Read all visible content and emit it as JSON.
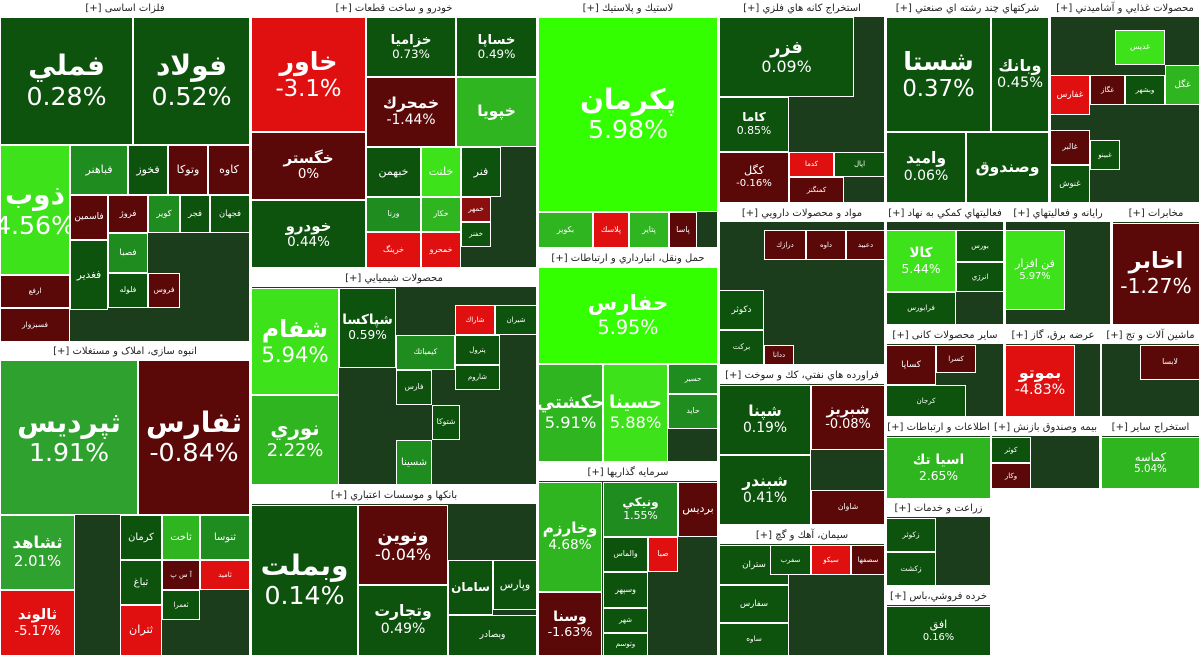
{
  "sectors": [
    {
      "title": "فلزات اساسی [+]",
      "tiles": [
        {
          "label": "فملي",
          "change": "0.28%",
          "color": "#0d520d"
        },
        {
          "label": "فولاد",
          "change": "0.52%",
          "color": "#0d520d"
        },
        {
          "label": "ذوب",
          "change": "4.56%",
          "color": "#3ee21b"
        },
        {
          "label": "فباهنر",
          "color": "#1f8c1f"
        },
        {
          "label": "فخوز",
          "color": "#0d520d"
        },
        {
          "label": "وتوكا",
          "color": "#5a0808"
        },
        {
          "label": "كاوه",
          "color": "#5a0808"
        },
        {
          "label": "فاسمين",
          "color": "#5a0808"
        },
        {
          "label": "فروژ",
          "color": "#5a0808"
        },
        {
          "label": "كوير",
          "color": "#1f8c1f"
        },
        {
          "label": "فجر",
          "color": "#0d520d"
        },
        {
          "label": "فجهان",
          "color": "#0d520d"
        },
        {
          "label": "فغدير",
          "color": "#0d520d"
        },
        {
          "label": "ارفع",
          "color": "#5a0808"
        },
        {
          "label": "فسبزوار",
          "color": "#5a0808"
        },
        {
          "label": "فصبا",
          "color": "#1f8c1f"
        },
        {
          "label": "فلوله",
          "color": "#0d520d"
        },
        {
          "label": "فروس",
          "color": "#5a0808"
        }
      ]
    },
    {
      "title": "انبوه سازی، املاک و مستغلات [+]",
      "tiles": [
        {
          "label": "ثپرديس",
          "change": "1.91%",
          "color": "#2ea12e"
        },
        {
          "label": "ثفارس",
          "change": "-0.84%",
          "color": "#5a0808"
        },
        {
          "label": "ثشاهد",
          "change": "2.01%",
          "color": "#2ea12e"
        },
        {
          "label": "كرمان",
          "color": "#0d520d"
        },
        {
          "label": "ثاخت",
          "color": "#2fb51f"
        },
        {
          "label": "ثنوسا",
          "color": "#1f8c1f"
        },
        {
          "label": "آ س پ",
          "color": "#5a0808"
        },
        {
          "label": "ثاميد",
          "color": "#e01010"
        },
        {
          "label": "ثباغ",
          "color": "#0d520d"
        },
        {
          "label": "ثالوند",
          "change": "-5.17%",
          "color": "#e01010"
        },
        {
          "label": "ثتران",
          "color": "#e01010"
        },
        {
          "label": "ثعمرا",
          "color": "#0d520d"
        }
      ]
    },
    {
      "title": "خودرو و ساخت قطعات [+]",
      "tiles": [
        {
          "label": "خاور",
          "change": "-3.1%",
          "color": "#e01010"
        },
        {
          "label": "خگستر",
          "change": "0%",
          "color": "#5a0808"
        },
        {
          "label": "خودرو",
          "change": "0.44%",
          "color": "#0d520d"
        },
        {
          "label": "خزاميا",
          "change": "0.73%",
          "color": "#0d520d"
        },
        {
          "label": "خساپا",
          "change": "0.49%",
          "color": "#0d520d"
        },
        {
          "label": "خمحرك",
          "change": "-1.44%",
          "color": "#5a0808"
        },
        {
          "label": "خپويا",
          "color": "#2fb51f"
        },
        {
          "label": "خبهمن",
          "color": "#0d520d"
        },
        {
          "label": "خلنت",
          "color": "#3ee21b"
        },
        {
          "label": "فنر",
          "color": "#0d520d"
        },
        {
          "label": "ورنا",
          "color": "#1f8c1f"
        },
        {
          "label": "خكار",
          "color": "#2fb51f"
        },
        {
          "label": "خرينگ",
          "color": "#e01010"
        },
        {
          "label": "خمحرو",
          "color": "#e01010"
        },
        {
          "label": "خمهر",
          "color": "#8b0f0f"
        },
        {
          "label": "خفنر",
          "color": "#0d520d"
        }
      ]
    },
    {
      "title": "محصولات شيميايي [+]",
      "tiles": [
        {
          "label": "شفام",
          "change": "5.94%",
          "color": "#3ee21b"
        },
        {
          "label": "نوري",
          "change": "2.22%",
          "color": "#2fb51f"
        },
        {
          "label": "شپاكسا",
          "change": "0.59%",
          "color": "#0d520d"
        },
        {
          "label": "شاراك",
          "color": "#e01010"
        },
        {
          "label": "شيران",
          "color": "#0d520d"
        },
        {
          "label": "پترول",
          "color": "#0d520d"
        },
        {
          "label": "كيمياتك",
          "color": "#1f8c1f"
        },
        {
          "label": "شاروم",
          "color": "#0d520d"
        },
        {
          "label": "فارس",
          "color": "#0d520d"
        },
        {
          "label": "شتوكا",
          "color": "#0d520d"
        },
        {
          "label": "شسينا",
          "color": "#1f8c1f"
        }
      ]
    },
    {
      "title": "بانكها و موسسات اعتباري [+]",
      "tiles": [
        {
          "label": "وبملت",
          "change": "0.14%",
          "color": "#0d520d"
        },
        {
          "label": "ونوين",
          "change": "-0.04%",
          "color": "#5a0808"
        },
        {
          "label": "وتجارت",
          "change": "0.49%",
          "color": "#0d520d"
        },
        {
          "label": "سامان",
          "color": "#0d520d"
        },
        {
          "label": "وپارس",
          "color": "#0d520d"
        },
        {
          "label": "وبصادر",
          "color": "#0d520d"
        }
      ]
    },
    {
      "title": "لاستيك و پلاستيك [+]",
      "tiles": [
        {
          "label": "پكرمان",
          "change": "5.98%",
          "color": "#33ff00"
        },
        {
          "label": "بكوير",
          "color": "#2fb51f"
        },
        {
          "label": "پلاسك",
          "color": "#e01010"
        },
        {
          "label": "پتاير",
          "color": "#2fb51f"
        },
        {
          "label": "پاسا",
          "color": "#5a0808"
        }
      ]
    },
    {
      "title": "حمل ونقل، انبارداري و ارتباطات [+]",
      "tiles": [
        {
          "label": "حفارس",
          "change": "5.95%",
          "color": "#33ff00"
        },
        {
          "label": "حكشتي",
          "change": "5.91%",
          "color": "#2fb51f"
        },
        {
          "label": "حسينا",
          "change": "5.88%",
          "color": "#3ee21b"
        },
        {
          "label": "حسير",
          "color": "#1f8c1f"
        },
        {
          "label": "حايد",
          "color": "#1f8c1f"
        }
      ]
    },
    {
      "title": "سرمايه گذاريها [+]",
      "tiles": [
        {
          "label": "وخارزم",
          "change": "4.68%",
          "color": "#2fb51f"
        },
        {
          "label": "ونيكي",
          "change": "1.55%",
          "color": "#1f8c1f"
        },
        {
          "label": "برديس",
          "color": "#5a0808"
        },
        {
          "label": "والماس",
          "color": "#0d520d"
        },
        {
          "label": "صبا",
          "color": "#e01010"
        },
        {
          "label": "وسپهر",
          "color": "#0d520d"
        },
        {
          "label": "وسنا",
          "change": "-1.63%",
          "color": "#5a0808"
        },
        {
          "label": "شهر",
          "color": "#0d520d"
        },
        {
          "label": "وتوسم",
          "color": "#0d520d"
        }
      ]
    },
    {
      "title": "استخراج كانه هاي فلزي [+]",
      "tiles": [
        {
          "label": "فزر",
          "change": "0.09%",
          "color": "#0d520d"
        },
        {
          "label": "كاما",
          "change": "0.85%",
          "color": "#0d520d"
        },
        {
          "label": "كگل",
          "change": "-0.16%",
          "color": "#5a0808"
        },
        {
          "label": "كدما",
          "color": "#e01010"
        },
        {
          "label": "كمنگنز",
          "color": "#5a0808"
        },
        {
          "label": "اپال",
          "color": "#0d520d"
        }
      ]
    },
    {
      "title": "شركتهاي چند رشته اي صنعتي [+]",
      "tiles": [
        {
          "label": "شستا",
          "change": "0.37%",
          "color": "#0d520d"
        },
        {
          "label": "وبانك",
          "change": "0.45%",
          "color": "#0d520d"
        },
        {
          "label": "واميد",
          "change": "0.06%",
          "color": "#0d520d"
        },
        {
          "label": "وصندوق",
          "color": "#0d520d"
        }
      ]
    },
    {
      "title": "محصولات غذايي و آشاميدني [+]",
      "tiles": [
        {
          "label": "غديس",
          "color": "#3ee21b"
        },
        {
          "label": "غگل",
          "color": "#2fb51f"
        },
        {
          "label": "غفارس",
          "color": "#e01010"
        },
        {
          "label": "غگاز",
          "color": "#5a0808"
        },
        {
          "label": "وبشهر",
          "color": "#0d520d"
        },
        {
          "label": "غالبر",
          "color": "#5a0808"
        },
        {
          "label": "غبينو",
          "color": "#0d520d"
        },
        {
          "label": "غنوش",
          "color": "#0d520d"
        }
      ]
    },
    {
      "title": "مواد و محصولات دارويي [+]",
      "tiles": [
        {
          "label": "دكوثر",
          "color": "#0d520d"
        },
        {
          "label": "درازك",
          "color": "#5a0808"
        },
        {
          "label": "داوه",
          "color": "#5a0808"
        },
        {
          "label": "دعبيد",
          "color": "#5a0808"
        },
        {
          "label": "بركت",
          "color": "#0d520d"
        },
        {
          "label": "ددانا",
          "color": "#5a0808"
        }
      ]
    },
    {
      "title": "فعاليتهاي كمكي به نهاد [+]",
      "tiles": [
        {
          "label": "كالا",
          "change": "5.44%",
          "color": "#3ee21b"
        },
        {
          "label": "بورس",
          "color": "#0d520d"
        },
        {
          "label": "انرژي",
          "color": "#0d520d"
        },
        {
          "label": "فرابورس",
          "color": "#0d520d"
        }
      ]
    },
    {
      "title": "رايانه و فعاليتهاي [+]",
      "tiles": [
        {
          "label": "فن افزار",
          "change": "5.97%",
          "color": "#3ee21b"
        }
      ]
    },
    {
      "title": "مخابرات [+]",
      "tiles": [
        {
          "label": "اخابر",
          "change": "-1.27%",
          "color": "#5a0808"
        }
      ]
    },
    {
      "title": "فراورده هاي نفتي، كك و سوخت [+]",
      "tiles": [
        {
          "label": "شپنا",
          "change": "0.19%",
          "color": "#0d520d"
        },
        {
          "label": "شبريز",
          "change": "-0.08%",
          "color": "#5a0808"
        },
        {
          "label": "شبندر",
          "change": "0.41%",
          "color": "#0d520d"
        },
        {
          "label": "شاوان",
          "color": "#5a0808"
        }
      ]
    },
    {
      "title": "سيمان، آهك و گچ [+]",
      "tiles": [
        {
          "label": "ستران",
          "color": "#0d520d"
        },
        {
          "label": "سفرب",
          "color": "#0d520d"
        },
        {
          "label": "سيكو",
          "color": "#e01010"
        },
        {
          "label": "سصفها",
          "color": "#5a0808"
        },
        {
          "label": "سفارس",
          "color": "#0d520d"
        },
        {
          "label": "ساوه",
          "color": "#0d520d"
        }
      ]
    },
    {
      "title": "سایر محصولات كانی [+]",
      "tiles": [
        {
          "label": "كساپا",
          "color": "#5a0808"
        },
        {
          "label": "كسرا",
          "color": "#5a0808"
        },
        {
          "label": "كرجان",
          "color": "#0d520d"
        }
      ]
    },
    {
      "title": "اطلاعات و ارتباطات [+]",
      "tiles": [
        {
          "label": "اسيا تك",
          "change": "2.65%",
          "color": "#2fb51f"
        }
      ]
    },
    {
      "title": "زراعت و خدمات [+]",
      "tiles": [
        {
          "label": "زكوثر",
          "color": "#0d520d"
        },
        {
          "label": "زكشت",
          "color": "#0d520d"
        }
      ]
    },
    {
      "title": "خرده فروشي،باس [+]",
      "tiles": [
        {
          "label": "افق",
          "change": "0.16%",
          "color": "#0d520d"
        }
      ]
    },
    {
      "title": "عرضه برق، گاز [+]",
      "tiles": [
        {
          "label": "بموتو",
          "change": "-4.83%",
          "color": "#e01010"
        }
      ]
    },
    {
      "title": "ماشين آلات و تج [+]",
      "tiles": [
        {
          "label": "لابسا",
          "color": "#5a0808"
        }
      ]
    },
    {
      "title": "بيمه وصندوق بازنش [+]",
      "tiles": [
        {
          "label": "كوثر",
          "color": "#0d520d"
        },
        {
          "label": "وكار",
          "color": "#5a0808"
        }
      ]
    },
    {
      "title": "استخراج ساير [+]",
      "tiles": [
        {
          "label": "كماسه",
          "change": "5.04%",
          "color": "#2fb51f"
        }
      ]
    }
  ]
}
